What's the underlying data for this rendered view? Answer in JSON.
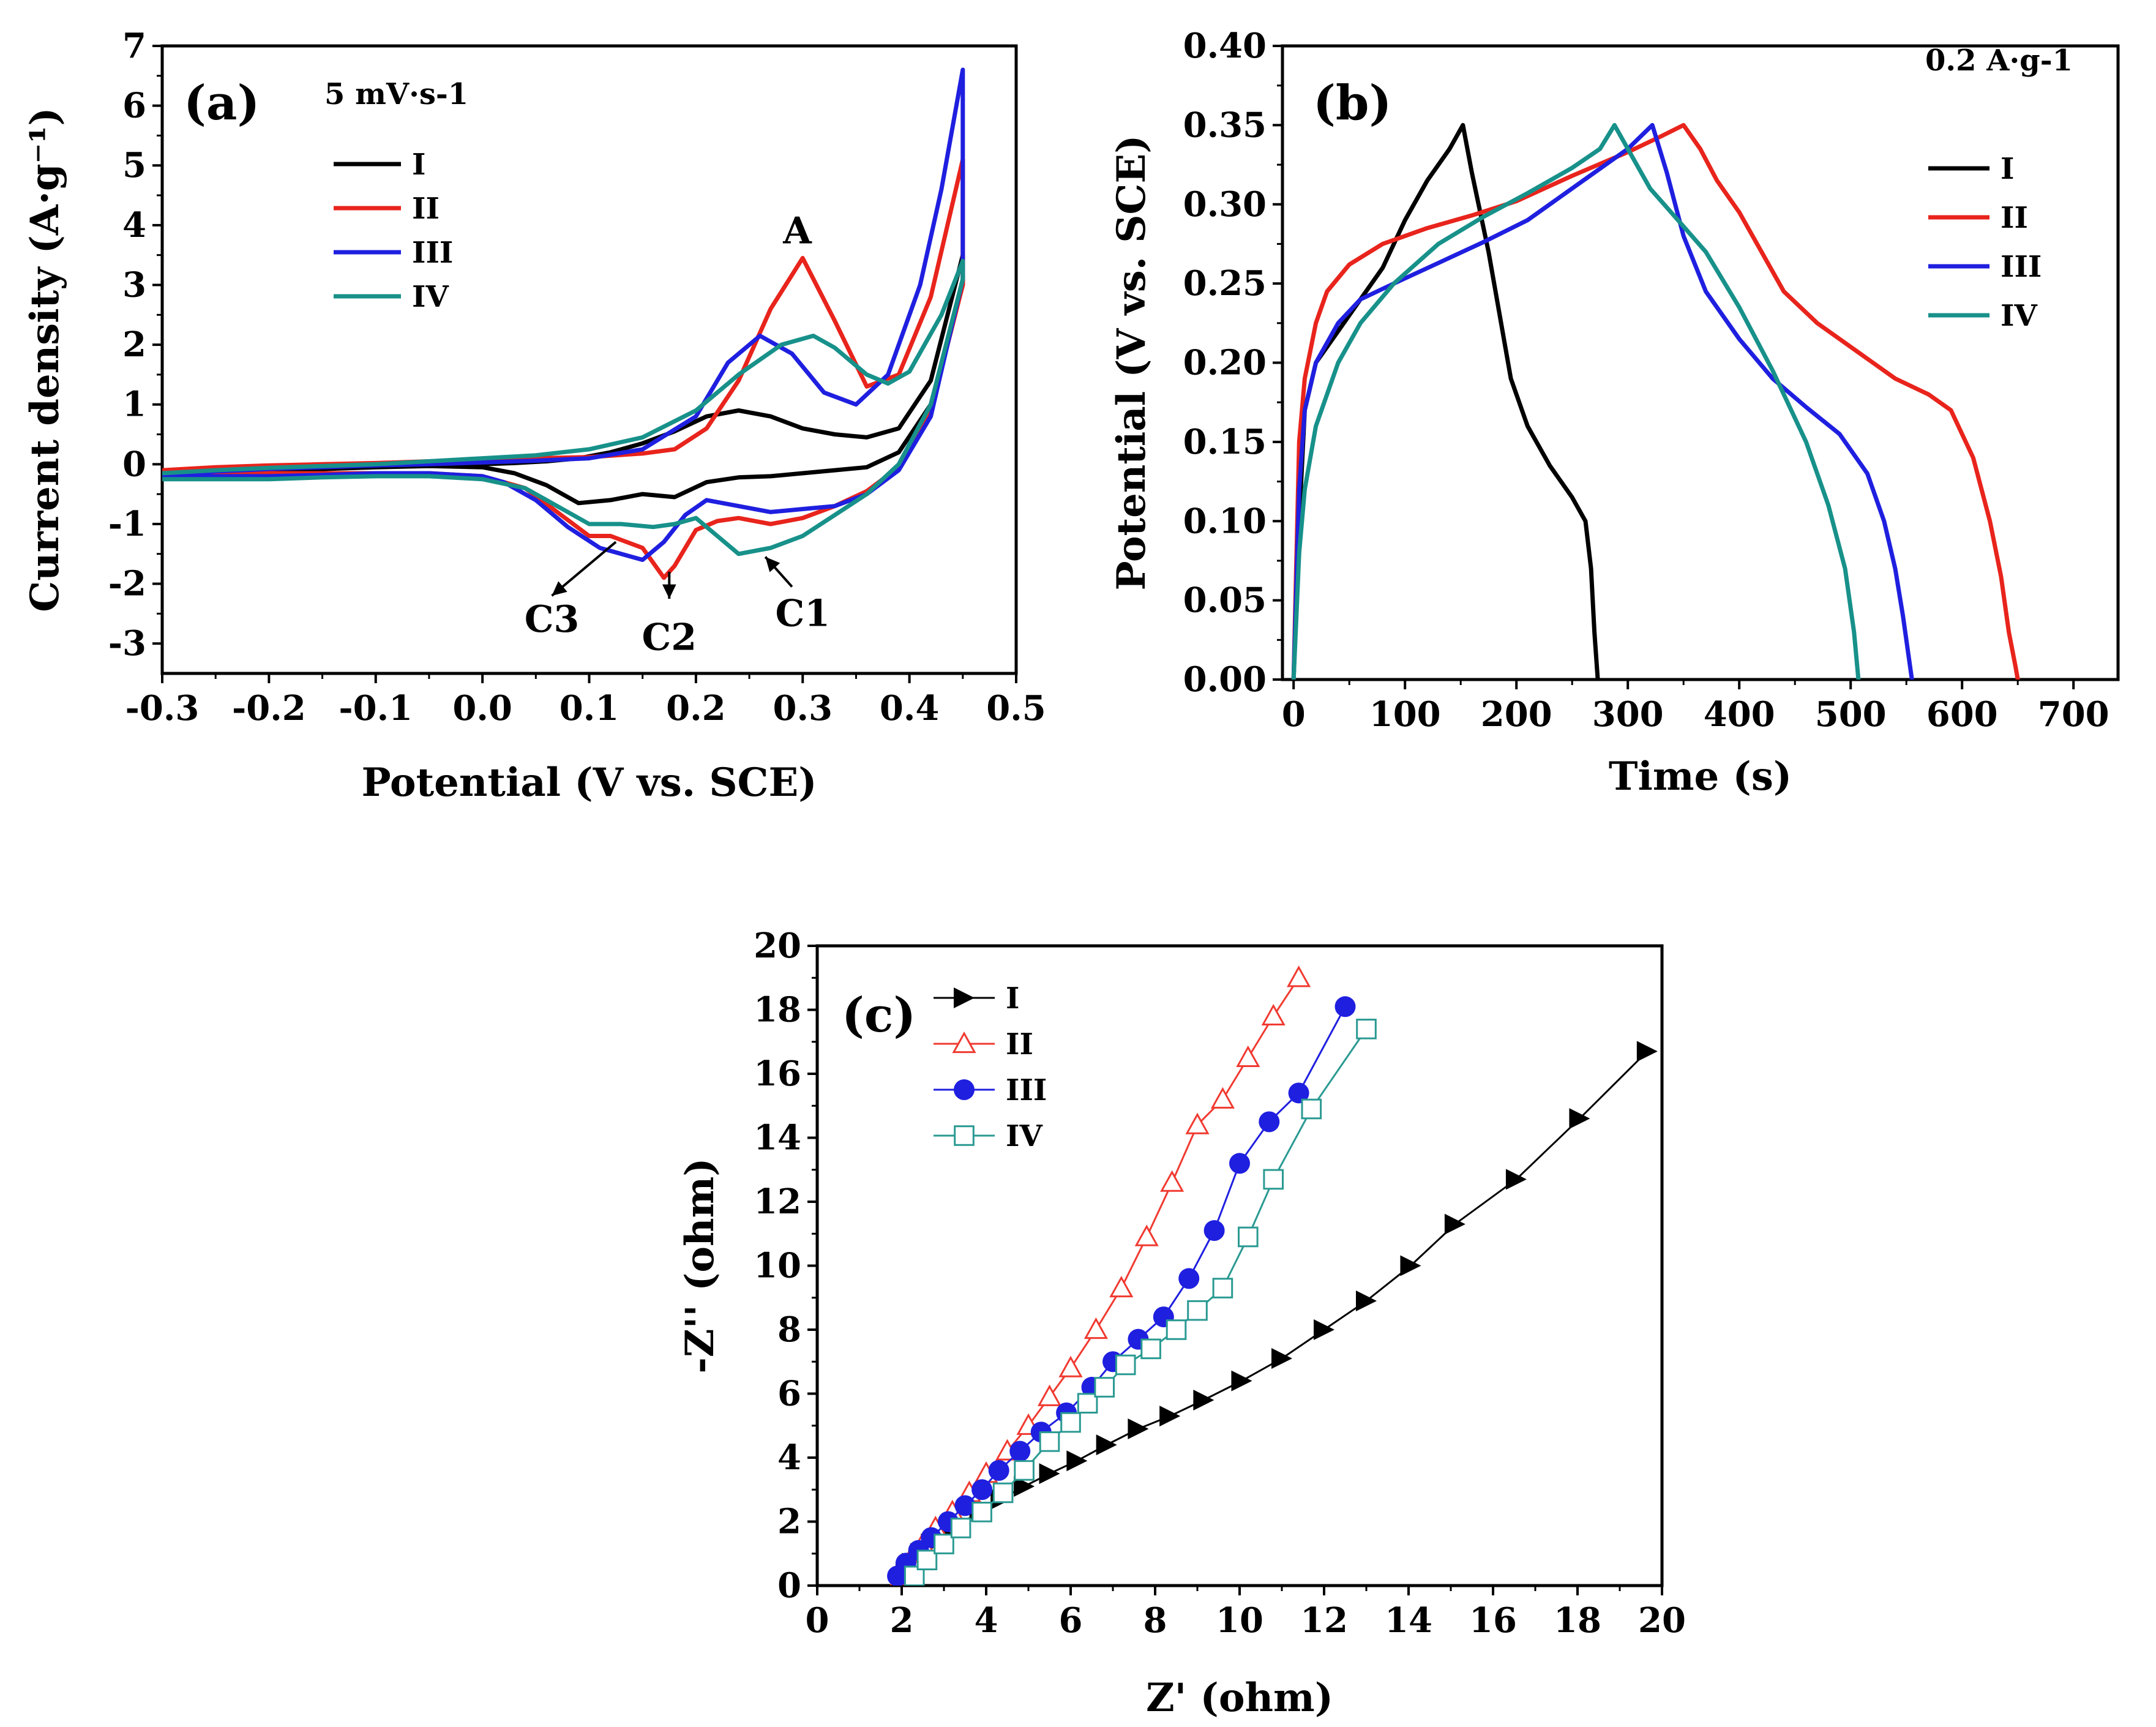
{
  "chart_data": [
    {
      "panel": "(a)",
      "type": "line",
      "xlabel": "Potential (V vs. SCE)",
      "ylabel": "Current density (A·g⁻¹)",
      "xlim": [
        -0.3,
        0.5
      ],
      "ylim": [
        -3.5,
        7
      ],
      "xticks": [
        -0.3,
        -0.2,
        -0.1,
        0.0,
        0.1,
        0.2,
        0.3,
        0.4,
        0.5
      ],
      "xtick_labels": [
        "-0.3",
        "-0.2",
        "-0.1",
        "0.0",
        "0.1",
        "0.2",
        "0.3",
        "0.4",
        "0.5"
      ],
      "yticks": [
        -3,
        -2,
        -1,
        0,
        1,
        2,
        3,
        4,
        5,
        6,
        7
      ],
      "ytick_labels": [
        "-3",
        "-2",
        "-1",
        "0",
        "1",
        "2",
        "3",
        "4",
        "5",
        "6",
        "7"
      ],
      "note": "5 mV·s-1",
      "legend_position": "top-left",
      "annotations": [
        {
          "text": "A",
          "x": 0.295,
          "y": 3.9,
          "arrow": false
        },
        {
          "text": "C1",
          "x": 0.3,
          "y": -2.5,
          "arrow_to": [
            0.265,
            -1.55
          ],
          "arrow_from": [
            0.29,
            -2.05
          ]
        },
        {
          "text": "C2",
          "x": 0.175,
          "y": -2.9,
          "arrow_to": [
            0.175,
            -2.25
          ],
          "arrow_from": [
            0.175,
            -1.8
          ]
        },
        {
          "text": "C3",
          "x": 0.065,
          "y": -2.6,
          "arrow_to": [
            0.065,
            -2.2
          ],
          "arrow_from": [
            0.125,
            -1.3
          ]
        }
      ],
      "series": [
        {
          "name": "I",
          "color": "#000000",
          "x": [
            -0.3,
            -0.25,
            -0.2,
            -0.15,
            -0.1,
            -0.05,
            0.0,
            0.03,
            0.06,
            0.09,
            0.12,
            0.15,
            0.18,
            0.21,
            0.24,
            0.27,
            0.3,
            0.33,
            0.36,
            0.39,
            0.42,
            0.45,
            0.45,
            0.42,
            0.39,
            0.36,
            0.33,
            0.3,
            0.27,
            0.24,
            0.21,
            0.18,
            0.15,
            0.12,
            0.09,
            0.06,
            0.03,
            0.0,
            -0.05,
            -0.1,
            -0.15,
            -0.2,
            -0.25,
            -0.3
          ],
          "y": [
            -0.15,
            -0.1,
            -0.07,
            -0.05,
            -0.03,
            -0.01,
            0.0,
            0.02,
            0.05,
            0.1,
            0.2,
            0.35,
            0.55,
            0.8,
            0.9,
            0.8,
            0.6,
            0.5,
            0.45,
            0.6,
            1.4,
            3.5,
            3.0,
            1.0,
            0.2,
            -0.05,
            -0.1,
            -0.15,
            -0.2,
            -0.22,
            -0.3,
            -0.55,
            -0.5,
            -0.6,
            -0.65,
            -0.35,
            -0.15,
            -0.05,
            -0.03,
            -0.05,
            -0.08,
            -0.1,
            -0.12,
            -0.15
          ]
        },
        {
          "name": "II",
          "color": "#e8241c",
          "x": [
            -0.3,
            -0.25,
            -0.2,
            -0.15,
            -0.1,
            -0.05,
            0.0,
            0.05,
            0.1,
            0.15,
            0.18,
            0.21,
            0.24,
            0.27,
            0.3,
            0.33,
            0.36,
            0.39,
            0.42,
            0.45,
            0.45,
            0.42,
            0.39,
            0.36,
            0.33,
            0.3,
            0.27,
            0.24,
            0.22,
            0.2,
            0.18,
            0.17,
            0.15,
            0.12,
            0.1,
            0.07,
            0.04,
            0.0,
            -0.05,
            -0.1,
            -0.15,
            -0.2,
            -0.25,
            -0.3
          ],
          "y": [
            -0.1,
            -0.05,
            -0.02,
            0.0,
            0.02,
            0.05,
            0.08,
            0.1,
            0.12,
            0.18,
            0.25,
            0.6,
            1.4,
            2.6,
            3.45,
            2.4,
            1.3,
            1.5,
            2.8,
            5.1,
            3.0,
            0.9,
            -0.05,
            -0.45,
            -0.7,
            -0.9,
            -1.0,
            -0.9,
            -0.95,
            -1.1,
            -1.7,
            -1.9,
            -1.4,
            -1.2,
            -1.2,
            -0.8,
            -0.4,
            -0.2,
            -0.15,
            -0.15,
            -0.15,
            -0.15,
            -0.15,
            -0.15
          ]
        },
        {
          "name": "III",
          "color": "#1f1fe0",
          "x": [
            -0.3,
            -0.25,
            -0.2,
            -0.15,
            -0.1,
            -0.05,
            0.0,
            0.05,
            0.1,
            0.15,
            0.2,
            0.23,
            0.26,
            0.29,
            0.32,
            0.35,
            0.38,
            0.41,
            0.43,
            0.45,
            0.45,
            0.42,
            0.39,
            0.36,
            0.33,
            0.3,
            0.27,
            0.24,
            0.21,
            0.19,
            0.17,
            0.15,
            0.13,
            0.11,
            0.08,
            0.05,
            0.02,
            0.0,
            -0.05,
            -0.1,
            -0.15,
            -0.2,
            -0.25,
            -0.3
          ],
          "y": [
            -0.2,
            -0.12,
            -0.08,
            -0.05,
            -0.02,
            0.0,
            0.03,
            0.06,
            0.1,
            0.25,
            0.8,
            1.7,
            2.15,
            1.85,
            1.2,
            1.0,
            1.5,
            3.0,
            4.6,
            6.6,
            3.1,
            0.8,
            -0.1,
            -0.5,
            -0.7,
            -0.75,
            -0.8,
            -0.7,
            -0.6,
            -0.85,
            -1.3,
            -1.6,
            -1.5,
            -1.4,
            -1.05,
            -0.6,
            -0.3,
            -0.2,
            -0.15,
            -0.15,
            -0.18,
            -0.2,
            -0.2,
            -0.2
          ]
        },
        {
          "name": "IV",
          "color": "#17918a",
          "x": [
            -0.3,
            -0.25,
            -0.2,
            -0.15,
            -0.1,
            -0.05,
            0.0,
            0.05,
            0.1,
            0.15,
            0.2,
            0.24,
            0.28,
            0.31,
            0.33,
            0.36,
            0.38,
            0.4,
            0.43,
            0.45,
            0.45,
            0.42,
            0.39,
            0.36,
            0.33,
            0.3,
            0.27,
            0.24,
            0.22,
            0.2,
            0.18,
            0.16,
            0.13,
            0.1,
            0.07,
            0.04,
            0.0,
            -0.05,
            -0.1,
            -0.15,
            -0.2,
            -0.25,
            -0.3
          ],
          "y": [
            -0.15,
            -0.1,
            -0.06,
            -0.03,
            0.0,
            0.05,
            0.1,
            0.15,
            0.25,
            0.45,
            0.9,
            1.5,
            2.0,
            2.15,
            1.95,
            1.5,
            1.35,
            1.55,
            2.5,
            3.4,
            3.1,
            1.0,
            0.0,
            -0.5,
            -0.85,
            -1.2,
            -1.4,
            -1.5,
            -1.2,
            -0.9,
            -1.0,
            -1.05,
            -1.0,
            -1.0,
            -0.7,
            -0.4,
            -0.25,
            -0.2,
            -0.2,
            -0.22,
            -0.25,
            -0.25,
            -0.25
          ]
        }
      ]
    },
    {
      "panel": "(b)",
      "type": "line",
      "xlabel": "Time (s)",
      "ylabel": "Potential (V vs. SCE)",
      "xlim": [
        -10,
        740
      ],
      "ylim": [
        0.0,
        0.4
      ],
      "xticks": [
        0,
        100,
        200,
        300,
        400,
        500,
        600,
        700
      ],
      "xtick_labels": [
        "0",
        "100",
        "200",
        "300",
        "400",
        "500",
        "600",
        "700"
      ],
      "yticks": [
        0.0,
        0.05,
        0.1,
        0.15,
        0.2,
        0.25,
        0.3,
        0.35,
        0.4
      ],
      "ytick_labels": [
        "0.00",
        "0.05",
        "0.10",
        "0.15",
        "0.20",
        "0.25",
        "0.30",
        "0.35",
        "0.40"
      ],
      "note": "0.2 A·g-1",
      "legend_position": "top-right",
      "series": [
        {
          "name": "I",
          "color": "#000000",
          "x": [
            0,
            5,
            10,
            20,
            40,
            60,
            80,
            100,
            120,
            140,
            152,
            160,
            175,
            185,
            195,
            210,
            230,
            250,
            262,
            267,
            270,
            273
          ],
          "y": [
            0.0,
            0.1,
            0.17,
            0.2,
            0.22,
            0.24,
            0.26,
            0.29,
            0.315,
            0.335,
            0.35,
            0.32,
            0.27,
            0.23,
            0.19,
            0.16,
            0.135,
            0.115,
            0.1,
            0.07,
            0.03,
            0.0
          ],
          "markers": false
        },
        {
          "name": "II",
          "color": "#e8241c",
          "x": [
            0,
            5,
            10,
            20,
            30,
            50,
            80,
            120,
            160,
            200,
            250,
            300,
            330,
            350,
            365,
            380,
            400,
            420,
            440,
            470,
            500,
            540,
            570,
            590,
            610,
            625,
            635,
            642,
            648,
            650
          ],
          "y": [
            0.0,
            0.15,
            0.19,
            0.225,
            0.245,
            0.262,
            0.275,
            0.285,
            0.293,
            0.302,
            0.318,
            0.333,
            0.343,
            0.35,
            0.335,
            0.315,
            0.295,
            0.27,
            0.245,
            0.225,
            0.21,
            0.19,
            0.18,
            0.17,
            0.14,
            0.1,
            0.065,
            0.03,
            0.008,
            0.0
          ],
          "markers": false
        },
        {
          "name": "III",
          "color": "#1f1fe0",
          "x": [
            0,
            5,
            10,
            20,
            40,
            60,
            90,
            130,
            170,
            210,
            260,
            300,
            322,
            335,
            350,
            370,
            400,
            430,
            460,
            490,
            515,
            530,
            540,
            547,
            552,
            555
          ],
          "y": [
            0.0,
            0.12,
            0.17,
            0.2,
            0.225,
            0.24,
            0.25,
            0.263,
            0.276,
            0.29,
            0.315,
            0.335,
            0.35,
            0.32,
            0.28,
            0.245,
            0.215,
            0.19,
            0.172,
            0.155,
            0.13,
            0.1,
            0.07,
            0.04,
            0.015,
            0.0
          ],
          "markers": false
        },
        {
          "name": "IV",
          "color": "#17918a",
          "x": [
            0,
            5,
            10,
            20,
            40,
            60,
            90,
            130,
            170,
            210,
            250,
            275,
            288,
            300,
            320,
            345,
            370,
            400,
            430,
            460,
            480,
            495,
            503,
            507
          ],
          "y": [
            0.0,
            0.08,
            0.12,
            0.16,
            0.2,
            0.225,
            0.25,
            0.275,
            0.292,
            0.307,
            0.323,
            0.335,
            0.35,
            0.335,
            0.31,
            0.29,
            0.27,
            0.235,
            0.195,
            0.15,
            0.11,
            0.07,
            0.03,
            0.0
          ],
          "markers": false
        }
      ]
    },
    {
      "panel": "(c)",
      "type": "scatter",
      "xlabel": "Z' (ohm)",
      "ylabel": "-Z'' (ohm)",
      "xlim": [
        0,
        20
      ],
      "ylim": [
        0,
        20
      ],
      "xticks": [
        0,
        2,
        4,
        6,
        8,
        10,
        12,
        14,
        16,
        18,
        20
      ],
      "xtick_labels": [
        "0",
        "2",
        "4",
        "6",
        "8",
        "10",
        "12",
        "14",
        "16",
        "18",
        "20"
      ],
      "yticks": [
        0,
        2,
        4,
        6,
        8,
        10,
        12,
        14,
        16,
        18,
        20
      ],
      "ytick_labels": [
        "0",
        "2",
        "4",
        "6",
        "8",
        "10",
        "12",
        "14",
        "16",
        "18",
        "20"
      ],
      "legend_position": "top-left",
      "series": [
        {
          "name": "I",
          "color": "#000000",
          "marker": "triangle-right-filled",
          "x": [
            2.0,
            2.1,
            2.25,
            2.45,
            2.7,
            3.0,
            3.4,
            3.85,
            4.35,
            4.9,
            5.5,
            6.15,
            6.85,
            7.6,
            8.35,
            9.15,
            10.05,
            11.0,
            12.0,
            13.0,
            14.05,
            15.1,
            16.55,
            18.05,
            19.65
          ],
          "y": [
            0.1,
            0.4,
            0.7,
            1.0,
            1.3,
            1.6,
            1.95,
            2.3,
            2.7,
            3.1,
            3.5,
            3.9,
            4.4,
            4.9,
            5.3,
            5.8,
            6.4,
            7.1,
            8.0,
            8.9,
            10.0,
            11.3,
            12.7,
            14.6,
            16.7
          ]
        },
        {
          "name": "II",
          "color": "#f03a30",
          "marker": "triangle-up-open",
          "x": [
            2.0,
            2.2,
            2.5,
            2.8,
            3.2,
            3.6,
            4.0,
            4.5,
            5.0,
            5.5,
            6.0,
            6.6,
            7.2,
            7.8,
            8.4,
            9.0,
            9.6,
            10.2,
            10.8,
            11.4
          ],
          "y": [
            0.3,
            0.8,
            1.3,
            1.8,
            2.3,
            2.9,
            3.5,
            4.2,
            5.0,
            5.9,
            6.8,
            8.0,
            9.3,
            10.9,
            12.6,
            14.4,
            15.2,
            16.5,
            17.8,
            19.0
          ]
        },
        {
          "name": "III",
          "color": "#1f1fe0",
          "marker": "circle-filled",
          "x": [
            1.9,
            2.1,
            2.4,
            2.7,
            3.1,
            3.5,
            3.9,
            4.3,
            4.8,
            5.3,
            5.9,
            6.5,
            7.0,
            7.6,
            8.2,
            8.8,
            9.4,
            10.0,
            10.7,
            11.4,
            12.5
          ],
          "y": [
            0.3,
            0.7,
            1.1,
            1.5,
            2.0,
            2.5,
            3.0,
            3.6,
            4.2,
            4.8,
            5.4,
            6.2,
            7.0,
            7.7,
            8.4,
            9.6,
            11.1,
            13.2,
            14.5,
            15.4,
            18.1
          ]
        },
        {
          "name": "IV",
          "color": "#2a9a92",
          "marker": "square-open",
          "x": [
            2.3,
            2.6,
            3.0,
            3.4,
            3.9,
            4.4,
            4.9,
            5.5,
            6.0,
            6.4,
            6.8,
            7.3,
            7.9,
            8.5,
            9.0,
            9.6,
            10.2,
            10.8,
            11.7,
            13.0
          ],
          "y": [
            0.3,
            0.8,
            1.3,
            1.8,
            2.3,
            2.9,
            3.6,
            4.5,
            5.1,
            5.7,
            6.2,
            6.9,
            7.4,
            8.0,
            8.6,
            9.3,
            10.9,
            12.7,
            14.9,
            17.4
          ]
        }
      ]
    }
  ]
}
